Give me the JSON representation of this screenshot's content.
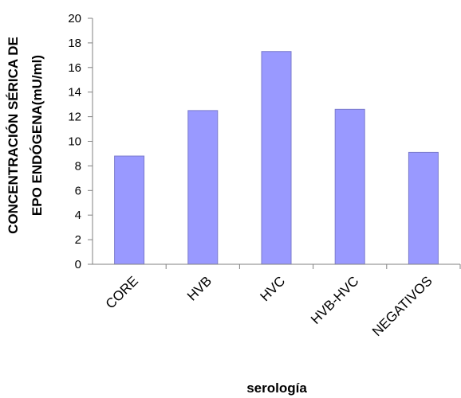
{
  "chart_data": {
    "type": "bar",
    "categories": [
      "CORE",
      "HVB",
      "HVC",
      "HVB-HVC",
      "NEGATIVOS"
    ],
    "values": [
      8.8,
      12.5,
      17.3,
      12.6,
      9.1
    ],
    "ylabel_line1": "CONCENTRACIÓN SÉRICA DE",
    "ylabel_line2": "EPO ENDÓGENA(mU/ml)",
    "xlabel": "serología",
    "ylim": [
      0,
      20
    ],
    "yticks": [
      0,
      2,
      4,
      6,
      8,
      10,
      12,
      14,
      16,
      18,
      20
    ],
    "grid": false,
    "legend": "none",
    "colors": {
      "bar": "#9999ff",
      "bar_edge": "#7a7acc",
      "axis": "#808080"
    }
  }
}
